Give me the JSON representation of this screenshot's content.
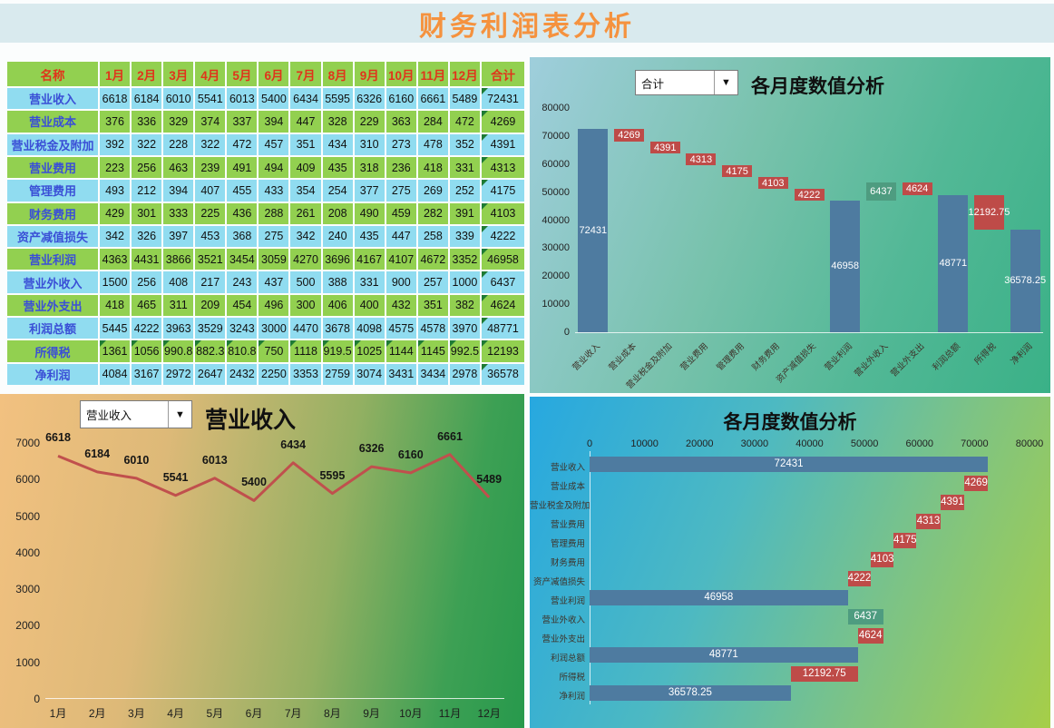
{
  "page": {
    "title": "财务利润表分析"
  },
  "colors": {
    "title_band_bg": "#D9EAEE",
    "title_text": "#F5923E",
    "table_header_bg": "#92D050",
    "table_header_text": "#E0341B",
    "row_cyan": "#90DCF0",
    "row_green": "#92D050",
    "row_label_text": "#3A4FD6",
    "cell_value_text": "#111111",
    "marker_green": "#1E7B34",
    "bar_total": "#4E7BA0",
    "bar_decrease": "#BE4B48",
    "bar_increase": "#4E9C80",
    "bar_label_text": "#FFFFFF",
    "axis_text": "#222222",
    "line_color": "#C0504D"
  },
  "table": {
    "columns": [
      "名称",
      "1月",
      "2月",
      "3月",
      "4月",
      "5月",
      "6月",
      "7月",
      "8月",
      "9月",
      "10月",
      "11月",
      "12月",
      "合计"
    ],
    "total_column_markers": true,
    "rows": [
      {
        "label": "营业收入",
        "values": [
          "6618",
          "6184",
          "6010",
          "5541",
          "6013",
          "5400",
          "6434",
          "5595",
          "6326",
          "6160",
          "6661",
          "5489",
          "72431"
        ]
      },
      {
        "label": "营业成本",
        "values": [
          "376",
          "336",
          "329",
          "374",
          "337",
          "394",
          "447",
          "328",
          "229",
          "363",
          "284",
          "472",
          "4269"
        ]
      },
      {
        "label": "营业税金及附加",
        "values": [
          "392",
          "322",
          "228",
          "322",
          "472",
          "457",
          "351",
          "434",
          "310",
          "273",
          "478",
          "352",
          "4391"
        ]
      },
      {
        "label": "营业费用",
        "values": [
          "223",
          "256",
          "463",
          "239",
          "491",
          "494",
          "409",
          "435",
          "318",
          "236",
          "418",
          "331",
          "4313"
        ]
      },
      {
        "label": "管理费用",
        "values": [
          "493",
          "212",
          "394",
          "407",
          "455",
          "433",
          "354",
          "254",
          "377",
          "275",
          "269",
          "252",
          "4175"
        ]
      },
      {
        "label": "财务费用",
        "values": [
          "429",
          "301",
          "333",
          "225",
          "436",
          "288",
          "261",
          "208",
          "490",
          "459",
          "282",
          "391",
          "4103"
        ]
      },
      {
        "label": "资产减值损失",
        "values": [
          "342",
          "326",
          "397",
          "453",
          "368",
          "275",
          "342",
          "240",
          "435",
          "447",
          "258",
          "339",
          "4222"
        ]
      },
      {
        "label": "营业利润",
        "values": [
          "4363",
          "4431",
          "3866",
          "3521",
          "3454",
          "3059",
          "4270",
          "3696",
          "4167",
          "4107",
          "4672",
          "3352",
          "46958"
        ]
      },
      {
        "label": "营业外收入",
        "values": [
          "1500",
          "256",
          "408",
          "217",
          "243",
          "437",
          "500",
          "388",
          "331",
          "900",
          "257",
          "1000",
          "6437"
        ]
      },
      {
        "label": "营业外支出",
        "values": [
          "418",
          "465",
          "311",
          "209",
          "454",
          "496",
          "300",
          "406",
          "400",
          "432",
          "351",
          "382",
          "4624"
        ]
      },
      {
        "label": "利润总额",
        "values": [
          "5445",
          "4222",
          "3963",
          "3529",
          "3243",
          "3000",
          "4470",
          "3678",
          "4098",
          "4575",
          "4578",
          "3970",
          "48771"
        ]
      },
      {
        "label": "所得税",
        "values": [
          "1361",
          "1056",
          "990.8",
          "882.3",
          "810.8",
          "750",
          "1118",
          "919.5",
          "1025",
          "1144",
          "1145",
          "992.5",
          "12193"
        ],
        "marker_cells": true
      },
      {
        "label": "净利润",
        "values": [
          "4084",
          "3167",
          "2972",
          "2647",
          "2432",
          "2250",
          "3353",
          "2759",
          "3074",
          "3431",
          "3434",
          "2978",
          "36578"
        ]
      }
    ]
  },
  "chart_data": [
    {
      "id": "waterfall-vertical",
      "type": "bar",
      "subtype": "waterfall",
      "orientation": "vertical",
      "dropdown_value": "合计",
      "title": "各月度数值分析",
      "axis": {
        "min": 0,
        "max": 80000,
        "step": 10000
      },
      "categories": [
        "营业收入",
        "营业成本",
        "营业税金及附加",
        "营业费用",
        "管理费用",
        "财务费用",
        "资产减值损失",
        "营业利润",
        "营业外收入",
        "营业外支出",
        "利润总额",
        "所得税",
        "净利润"
      ],
      "bars": [
        {
          "category": "营业收入",
          "start": 0,
          "end": 72431,
          "kind": "total",
          "label": "72431"
        },
        {
          "category": "营业成本",
          "start": 68162,
          "end": 72431,
          "kind": "decrease",
          "label": "4269"
        },
        {
          "category": "营业税金及附加",
          "start": 63771,
          "end": 68162,
          "kind": "decrease",
          "label": "4391"
        },
        {
          "category": "营业费用",
          "start": 59458,
          "end": 63771,
          "kind": "decrease",
          "label": "4313"
        },
        {
          "category": "管理费用",
          "start": 55283,
          "end": 59458,
          "kind": "decrease",
          "label": "4175"
        },
        {
          "category": "财务费用",
          "start": 51180,
          "end": 55283,
          "kind": "decrease",
          "label": "4103"
        },
        {
          "category": "资产减值损失",
          "start": 46958,
          "end": 51180,
          "kind": "decrease",
          "label": "4222"
        },
        {
          "category": "营业利润",
          "start": 0,
          "end": 46958,
          "kind": "total",
          "label": "46958"
        },
        {
          "category": "营业外收入",
          "start": 46958,
          "end": 53395,
          "kind": "increase",
          "label": "6437"
        },
        {
          "category": "营业外支出",
          "start": 48771,
          "end": 53395,
          "kind": "decrease",
          "label": "4624"
        },
        {
          "category": "利润总额",
          "start": 0,
          "end": 48771,
          "kind": "total",
          "label": "48771"
        },
        {
          "category": "所得税",
          "start": 36578.25,
          "end": 48771,
          "kind": "decrease",
          "label": "12192.75"
        },
        {
          "category": "净利润",
          "start": 0,
          "end": 36578.25,
          "kind": "total",
          "label": "36578.25"
        }
      ]
    },
    {
      "id": "line-revenue",
      "type": "line",
      "dropdown_value": "营业收入",
      "title": "营业收入",
      "categories": [
        "1月",
        "2月",
        "3月",
        "4月",
        "5月",
        "6月",
        "7月",
        "8月",
        "9月",
        "10月",
        "11月",
        "12月"
      ],
      "values": [
        6618,
        6184,
        6010,
        5541,
        6013,
        5400,
        6434,
        5595,
        6326,
        6160,
        6661,
        5489
      ],
      "ylim": [
        0,
        7000
      ],
      "step": 1000
    },
    {
      "id": "waterfall-horizontal",
      "type": "bar",
      "subtype": "waterfall",
      "orientation": "horizontal",
      "title": "各月度数值分析",
      "axis": {
        "min": 0,
        "max": 80000,
        "step": 10000
      },
      "categories": [
        "营业收入",
        "营业成本",
        "营业税金及附加",
        "营业费用",
        "管理费用",
        "财务费用",
        "资产减值损失",
        "营业利润",
        "营业外收入",
        "营业外支出",
        "利润总额",
        "所得税",
        "净利润"
      ],
      "bars": [
        {
          "category": "营业收入",
          "start": 0,
          "end": 72431,
          "kind": "total",
          "label": "72431"
        },
        {
          "category": "营业成本",
          "start": 68162,
          "end": 72431,
          "kind": "decrease",
          "label": "4269"
        },
        {
          "category": "营业税金及附加",
          "start": 63771,
          "end": 68162,
          "kind": "decrease",
          "label": "4391"
        },
        {
          "category": "营业费用",
          "start": 59458,
          "end": 63771,
          "kind": "decrease",
          "label": "4313"
        },
        {
          "category": "管理费用",
          "start": 55283,
          "end": 59458,
          "kind": "decrease",
          "label": "4175"
        },
        {
          "category": "财务费用",
          "start": 51180,
          "end": 55283,
          "kind": "decrease",
          "label": "4103"
        },
        {
          "category": "资产减值损失",
          "start": 46958,
          "end": 51180,
          "kind": "decrease",
          "label": "4222"
        },
        {
          "category": "营业利润",
          "start": 0,
          "end": 46958,
          "kind": "total",
          "label": "46958"
        },
        {
          "category": "营业外收入",
          "start": 46958,
          "end": 53395,
          "kind": "increase",
          "label": "6437"
        },
        {
          "category": "营业外支出",
          "start": 48771,
          "end": 53395,
          "kind": "decrease",
          "label": "4624"
        },
        {
          "category": "利润总额",
          "start": 0,
          "end": 48771,
          "kind": "total",
          "label": "48771"
        },
        {
          "category": "所得税",
          "start": 36578.25,
          "end": 48771,
          "kind": "decrease",
          "label": "12192.75"
        },
        {
          "category": "净利润",
          "start": 0,
          "end": 36578.25,
          "kind": "total",
          "label": "36578.25"
        }
      ]
    }
  ]
}
